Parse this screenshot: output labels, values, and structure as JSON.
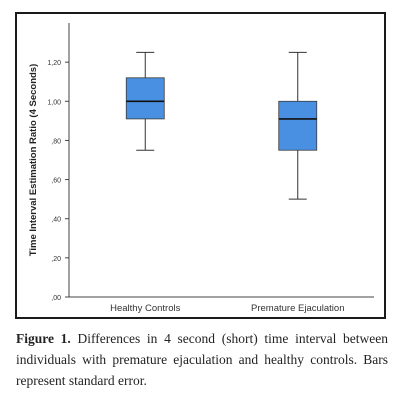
{
  "chart_data": {
    "type": "box",
    "ylabel": "Time Interval Estimation Ratio (4 Seconds)",
    "xlabel": "",
    "ylim": [
      0,
      1.4
    ],
    "yticks": [
      0,
      0.2,
      0.4,
      0.6,
      0.8,
      1.0,
      1.2
    ],
    "ytick_labels": [
      ",00",
      ",20",
      ",40",
      ",60",
      ",80",
      "1,00",
      "1,20"
    ],
    "categories": [
      "Healthy Controls",
      "Premature Ejaculation"
    ],
    "boxes": [
      {
        "category": "Healthy Controls",
        "min": 0.75,
        "q1": 0.91,
        "median": 1.0,
        "q3": 1.12,
        "max": 1.25
      },
      {
        "category": "Premature Ejaculation",
        "min": 0.5,
        "q1": 0.75,
        "median": 0.91,
        "q3": 1.0,
        "max": 1.25
      }
    ],
    "box_color": "#4a90e2",
    "grid": false,
    "legend": "none"
  },
  "caption": {
    "label": "Figure 1.",
    "text": " Differences in 4 second (short) time interval between individuals with premature ejaculation and healthy controls. Bars represent standard error."
  }
}
